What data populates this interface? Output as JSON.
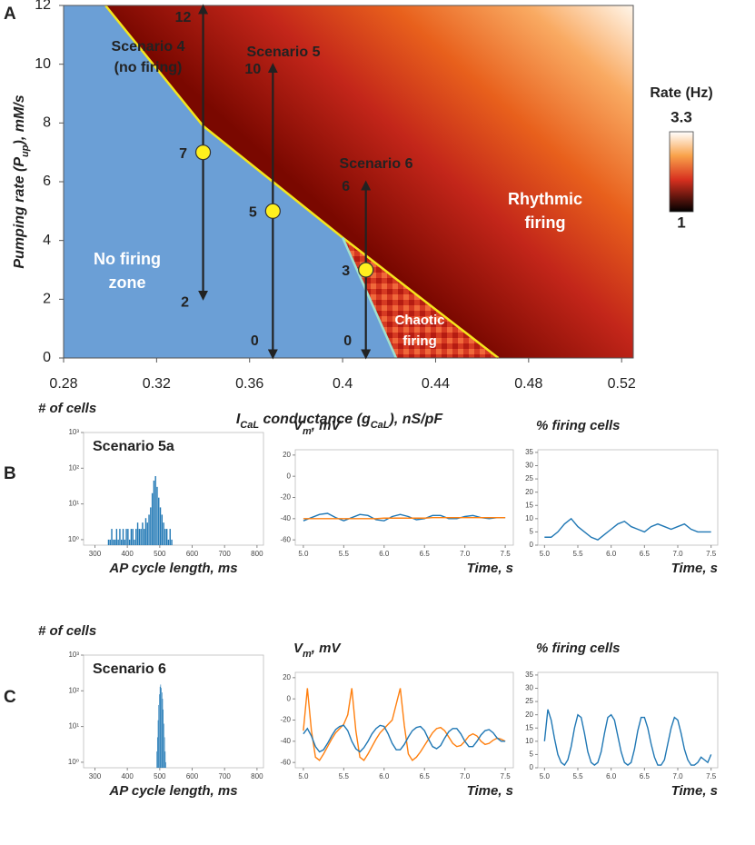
{
  "panels": [
    "A",
    "B",
    "C"
  ],
  "chart_data": [
    {
      "type": "heatmap",
      "xlabel": [
        "I",
        "CaL",
        " conductance (g",
        "CaL",
        "), nS/pF"
      ],
      "ylabel": [
        "Pumping rate (P",
        "up",
        "), mM/s"
      ],
      "xlim": [
        0.28,
        0.525
      ],
      "xticks": [
        0.28,
        0.32,
        0.36,
        0.4,
        0.44,
        0.48,
        0.52
      ],
      "ylim": [
        0,
        12
      ],
      "yticks": [
        0,
        2,
        4,
        6,
        8,
        10,
        12
      ],
      "boundary": {
        "x": [
          0.298,
          0.34,
          0.37,
          0.4,
          0.467
        ],
        "y": [
          12,
          7.9,
          6.0,
          4.1,
          0
        ]
      },
      "chaotic_boundary": {
        "x": [
          0.4,
          0.423
        ],
        "y": [
          4.1,
          0
        ]
      },
      "scenarios": [
        {
          "label": [
            "Scenario 4",
            "(no firing)"
          ],
          "x": 0.34,
          "y": 7,
          "top": 12,
          "bottom": 2
        },
        {
          "label": [
            "Scenario 5"
          ],
          "x": 0.37,
          "y": 5,
          "top": 10,
          "bottom": 0
        },
        {
          "label": [
            "Scenario 6"
          ],
          "x": 0.41,
          "y": 3,
          "top": 6,
          "bottom": 0
        }
      ],
      "annotations": [
        [
          "No firing",
          "zone"
        ],
        [
          "Rhythmic",
          "firing"
        ],
        [
          "Chaotic",
          "firing"
        ]
      ],
      "colorbar": {
        "label": "Rate (Hz)",
        "range": [
          1,
          3.3
        ]
      }
    },
    {
      "type": "histogram",
      "title": "# of cells",
      "xlabel": "AP cycle length, ms",
      "annotation": "Scenario 5a",
      "color": "#1f77b4",
      "log_y": true,
      "bins": [
        340,
        345,
        350,
        355,
        360,
        365,
        370,
        375,
        380,
        385,
        390,
        395,
        400,
        405,
        410,
        415,
        420,
        425,
        430,
        435,
        440,
        445,
        450,
        455,
        460,
        465,
        470,
        475,
        480,
        485,
        490,
        495,
        500,
        505,
        510,
        515,
        520,
        525,
        530,
        535,
        540
      ],
      "values": [
        1,
        1,
        2,
        1,
        1,
        2,
        1,
        2,
        1,
        2,
        1,
        2,
        2,
        1,
        2,
        2,
        1,
        2,
        3,
        2,
        2,
        3,
        2,
        4,
        3,
        5,
        8,
        20,
        45,
        60,
        30,
        15,
        8,
        5,
        3,
        2,
        2,
        1,
        2,
        1
      ],
      "xlim": [
        265,
        820
      ],
      "xticks": [
        300,
        400,
        500,
        600,
        700,
        800
      ],
      "ylim": [
        0.7,
        1000
      ],
      "yticks": [
        {
          "value": 1,
          "label": "10⁰"
        },
        {
          "value": 10,
          "label": "10¹"
        },
        {
          "value": 100,
          "label": "10²"
        },
        {
          "value": 1000,
          "label": "10³"
        }
      ]
    },
    {
      "type": "line",
      "title": [
        "V",
        "m",
        ", mV"
      ],
      "xlabel": "Time, s",
      "x": [
        5,
        5.1,
        5.2,
        5.3,
        5.4,
        5.5,
        5.6,
        5.7,
        5.8,
        5.9,
        6,
        6.1,
        6.2,
        6.3,
        6.4,
        6.5,
        6.6,
        6.7,
        6.8,
        6.9,
        7,
        7.1,
        7.2,
        7.3,
        7.4,
        7.5
      ],
      "series": [
        {
          "color": "#1f77b4",
          "values": [
            -42,
            -39,
            -36,
            -35,
            -39,
            -42,
            -39,
            -36,
            -37,
            -41,
            -42,
            -38,
            -36,
            -38,
            -41,
            -40,
            -37,
            -37,
            -40,
            -40,
            -38,
            -37,
            -39,
            -40,
            -39,
            -39
          ]
        },
        {
          "color": "#ff7f0e",
          "values": [
            -40,
            -40,
            -40,
            -40,
            -40,
            -40,
            -40,
            -40,
            -40,
            -40,
            -39.5,
            -39.5,
            -39.5,
            -39.5,
            -39.5,
            -39.5,
            -39,
            -39,
            -39,
            -39,
            -39,
            -39,
            -39,
            -39,
            -39,
            -39
          ]
        }
      ],
      "xlim": [
        4.9,
        7.6
      ],
      "xticks": [
        {
          "value": 5,
          "label": "5.0"
        },
        5.5,
        {
          "value": 6,
          "label": "6.0"
        },
        6.5,
        {
          "value": 7,
          "label": "7.0"
        },
        7.5
      ],
      "ylim": [
        -65,
        25
      ],
      "yticks": [
        -60,
        -40,
        -20,
        0,
        20
      ]
    },
    {
      "type": "line",
      "title": "% firing cells",
      "xlabel": "Time, s",
      "x": [
        5,
        5.1,
        5.2,
        5.3,
        5.4,
        5.5,
        5.6,
        5.7,
        5.8,
        5.9,
        6,
        6.1,
        6.2,
        6.3,
        6.4,
        6.5,
        6.6,
        6.7,
        6.8,
        6.9,
        7,
        7.1,
        7.2,
        7.3,
        7.4,
        7.5
      ],
      "series": [
        {
          "color": "#1f77b4",
          "values": [
            3,
            3,
            5,
            8,
            10,
            7,
            5,
            3,
            2,
            4,
            6,
            8,
            9,
            7,
            6,
            5,
            7,
            8,
            7,
            6,
            7,
            8,
            6,
            5,
            5,
            5
          ]
        }
      ],
      "xlim": [
        4.9,
        7.6
      ],
      "xticks": [
        {
          "value": 5,
          "label": "5.0"
        },
        5.5,
        {
          "value": 6,
          "label": "6.0"
        },
        6.5,
        {
          "value": 7,
          "label": "7.0"
        },
        7.5
      ],
      "ylim": [
        0,
        36
      ],
      "yticks": [
        0,
        5,
        10,
        15,
        20,
        25,
        30,
        35
      ]
    },
    {
      "type": "histogram",
      "title": "# of cells",
      "xlabel": "AP cycle length, ms",
      "annotation": "Scenario 6",
      "color": "#1f77b4",
      "log_y": true,
      "bins": [
        490,
        492,
        494,
        496,
        498,
        500,
        502,
        504,
        506,
        508,
        510,
        512,
        514,
        516,
        518,
        520
      ],
      "values": [
        2,
        5,
        15,
        40,
        80,
        130,
        150,
        120,
        90,
        60,
        30,
        12,
        5,
        2,
        1
      ],
      "xlim": [
        265,
        820
      ],
      "xticks": [
        300,
        400,
        500,
        600,
        700,
        800
      ],
      "ylim": [
        0.7,
        1000
      ],
      "yticks": [
        {
          "value": 1,
          "label": "10⁰"
        },
        {
          "value": 10,
          "label": "10¹"
        },
        {
          "value": 100,
          "label": "10²"
        },
        {
          "value": 1000,
          "label": "10³"
        }
      ]
    },
    {
      "type": "line",
      "title": [
        "V",
        "m",
        ", mV"
      ],
      "xlabel": "Time, s",
      "x": [
        5,
        5.05,
        5.1,
        5.15,
        5.2,
        5.25,
        5.3,
        5.35,
        5.4,
        5.45,
        5.5,
        5.55,
        5.6,
        5.65,
        5.7,
        5.75,
        5.8,
        5.85,
        5.9,
        5.95,
        6,
        6.05,
        6.1,
        6.15,
        6.2,
        6.25,
        6.3,
        6.35,
        6.4,
        6.45,
        6.5,
        6.55,
        6.6,
        6.65,
        6.7,
        6.75,
        6.8,
        6.85,
        6.9,
        6.95,
        7,
        7.05,
        7.1,
        7.15,
        7.2,
        7.25,
        7.3,
        7.35,
        7.4,
        7.45,
        7.5
      ],
      "series": [
        {
          "color": "#ff7f0e",
          "values": [
            -30,
            10,
            -30,
            -55,
            -58,
            -52,
            -45,
            -38,
            -32,
            -28,
            -24,
            -15,
            10,
            -30,
            -55,
            -58,
            -52,
            -45,
            -38,
            -32,
            -28,
            -24,
            -20,
            -5,
            10,
            -25,
            -52,
            -58,
            -55,
            -50,
            -44,
            -38,
            -32,
            -28,
            -27,
            -30,
            -36,
            -42,
            -45,
            -44,
            -40,
            -35,
            -33,
            -35,
            -40,
            -43,
            -42,
            -39,
            -37,
            -38,
            -40
          ]
        },
        {
          "color": "#1f77b4",
          "values": [
            -33,
            -28,
            -35,
            -45,
            -50,
            -48,
            -42,
            -35,
            -29,
            -26,
            -25,
            -30,
            -40,
            -47,
            -50,
            -46,
            -40,
            -33,
            -28,
            -25,
            -26,
            -33,
            -42,
            -48,
            -48,
            -43,
            -36,
            -30,
            -27,
            -26,
            -30,
            -38,
            -45,
            -47,
            -44,
            -37,
            -31,
            -28,
            -28,
            -33,
            -40,
            -45,
            -45,
            -40,
            -34,
            -30,
            -29,
            -32,
            -37,
            -40,
            -40
          ]
        }
      ],
      "xlim": [
        4.9,
        7.6
      ],
      "xticks": [
        {
          "value": 5,
          "label": "5.0"
        },
        5.5,
        {
          "value": 6,
          "label": "6.0"
        },
        6.5,
        {
          "value": 7,
          "label": "7.0"
        },
        7.5
      ],
      "ylim": [
        -65,
        25
      ],
      "yticks": [
        -60,
        -40,
        -20,
        0,
        20
      ]
    },
    {
      "type": "line",
      "title": "% firing cells",
      "xlabel": "Time, s",
      "x": [
        5,
        5.05,
        5.1,
        5.15,
        5.2,
        5.25,
        5.3,
        5.35,
        5.4,
        5.45,
        5.5,
        5.55,
        5.6,
        5.65,
        5.7,
        5.75,
        5.8,
        5.85,
        5.9,
        5.95,
        6,
        6.05,
        6.1,
        6.15,
        6.2,
        6.25,
        6.3,
        6.35,
        6.4,
        6.45,
        6.5,
        6.55,
        6.6,
        6.65,
        6.7,
        6.75,
        6.8,
        6.85,
        6.9,
        6.95,
        7,
        7.05,
        7.1,
        7.15,
        7.2,
        7.25,
        7.3,
        7.35,
        7.4,
        7.45,
        7.5
      ],
      "series": [
        {
          "color": "#1f77b4",
          "values": [
            10,
            22,
            18,
            11,
            5,
            2,
            1,
            3,
            8,
            15,
            20,
            19,
            13,
            6,
            2,
            1,
            2,
            6,
            13,
            19,
            20,
            18,
            12,
            6,
            2,
            1,
            2,
            7,
            14,
            19,
            19,
            15,
            9,
            4,
            1,
            1,
            3,
            9,
            15,
            19,
            18,
            13,
            7,
            3,
            1,
            1,
            2,
            4,
            3,
            2,
            5
          ]
        }
      ],
      "xlim": [
        4.9,
        7.6
      ],
      "xticks": [
        {
          "value": 5,
          "label": "5.0"
        },
        5.5,
        {
          "value": 6,
          "label": "6.0"
        },
        6.5,
        {
          "value": 7,
          "label": "7.0"
        },
        7.5
      ],
      "ylim": [
        0,
        36
      ],
      "yticks": [
        0,
        5,
        10,
        15,
        20,
        25,
        30,
        35
      ]
    }
  ]
}
